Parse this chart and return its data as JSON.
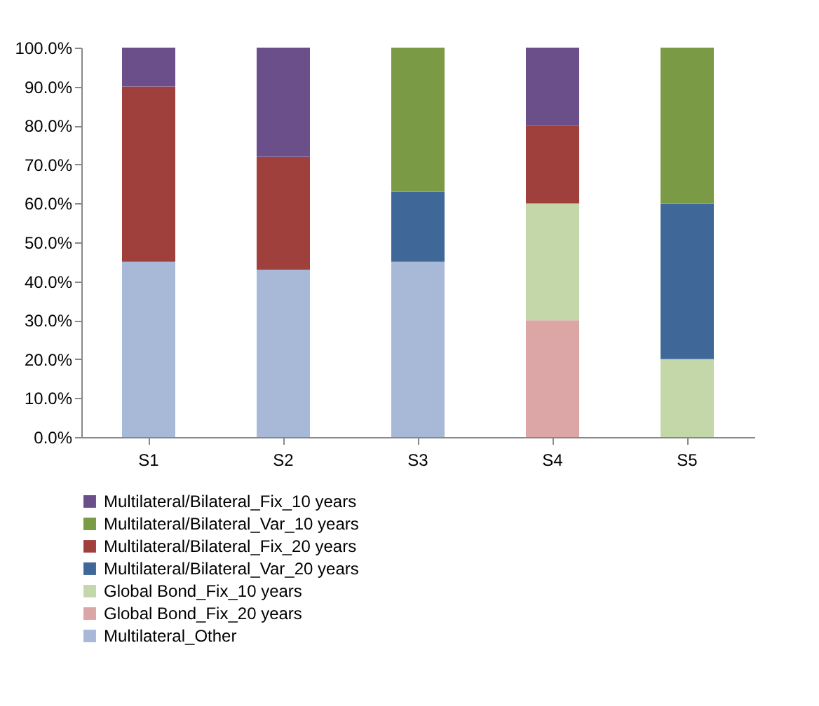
{
  "chart_data": {
    "type": "bar",
    "stacked": true,
    "legend": "bottom",
    "categories": [
      "S1",
      "S2",
      "S3",
      "S4",
      "S5"
    ],
    "series": [
      {
        "name": "Multilateral_Other",
        "color": "#a8b9d8",
        "values": [
          45,
          43,
          45,
          null,
          null
        ]
      },
      {
        "name": "Global Bond_Fix_20 years",
        "color": "#dba6a5",
        "values": [
          null,
          null,
          null,
          30,
          null
        ]
      },
      {
        "name": "Global Bond_Fix_10 years",
        "color": "#c4d7a9",
        "values": [
          null,
          null,
          null,
          30,
          20
        ]
      },
      {
        "name": "Multilateral/Bilateral_Var_20 years",
        "color": "#3f6899",
        "values": [
          null,
          null,
          18,
          null,
          40
        ]
      },
      {
        "name": "Multilateral/Bilateral_Fix_20 years",
        "color": "#a0403d",
        "values": [
          45,
          29,
          null,
          20,
          null
        ]
      },
      {
        "name": "Multilateral/Bilateral_Var_10 years",
        "color": "#7a9a45",
        "values": [
          null,
          null,
          37,
          null,
          40
        ]
      },
      {
        "name": "Multilateral/Bilateral_Fix_10 years",
        "color": "#6a4f8a",
        "values": [
          10,
          28,
          null,
          20,
          null
        ]
      }
    ],
    "ylim": [
      0,
      100
    ],
    "yticks": [
      {
        "value": 0,
        "label": "0.0%"
      },
      {
        "value": 10,
        "label": "10.0%"
      },
      {
        "value": 20,
        "label": "20.0%"
      },
      {
        "value": 30,
        "label": "30.0%"
      },
      {
        "value": 40,
        "label": "40.0%"
      },
      {
        "value": 50,
        "label": "50.0%"
      },
      {
        "value": 60,
        "label": "60.0%"
      },
      {
        "value": 70,
        "label": "70.0%"
      },
      {
        "value": 80,
        "label": "80.0%"
      },
      {
        "value": 90,
        "label": "90.0%"
      },
      {
        "value": 100,
        "label": "100.0%"
      }
    ]
  }
}
